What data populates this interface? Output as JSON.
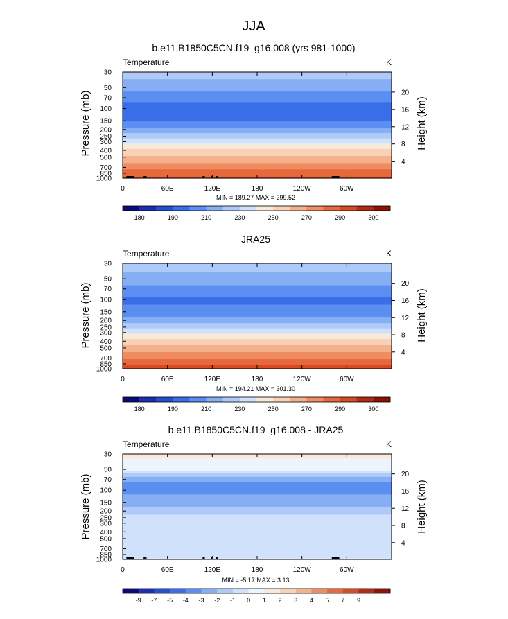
{
  "page_title": "JJA",
  "colors": {
    "temp_scale": [
      "#0a0a78",
      "#1c2eb4",
      "#2150d2",
      "#3a6ee8",
      "#5b8ef0",
      "#86aef4",
      "#aecaf8",
      "#d0e2fb",
      "#f6ead8",
      "#f8d2b8",
      "#f5b08c",
      "#f08c62",
      "#e8683e",
      "#d84a24",
      "#b02c14",
      "#8a1208"
    ],
    "diff_scale": [
      "#0a0a78",
      "#1c2eb4",
      "#2150d2",
      "#3a6ee8",
      "#5b8ef0",
      "#86aef4",
      "#aecaf8",
      "#d0e2fb",
      "#eef4fc",
      "#fbe8dc",
      "#f8d2b8",
      "#f5b08c",
      "#f08c62",
      "#e8683e",
      "#d84a24",
      "#b02c14",
      "#8a1208"
    ],
    "topography": "#000000"
  },
  "chart_data": [
    {
      "type": "heatmap",
      "title": "b.e11.B1850C5CN.f19_g16.008 (yrs 981-1000)",
      "left_label": "Temperature",
      "right_label": "K",
      "ylabel": "Pressure (mb)",
      "ylabel_right": "Height (km)",
      "y_scale": "log",
      "y_reversed": true,
      "ylim": [
        1000,
        30
      ],
      "xlim": [
        0,
        360
      ],
      "x_ticks": [
        "0",
        "60E",
        "120E",
        "180",
        "120W",
        "60W"
      ],
      "y_ticks": [
        "30",
        "50",
        "70",
        "100",
        "150",
        "200",
        "250",
        "300",
        "400",
        "500",
        "700",
        "850",
        "1000"
      ],
      "height_ticks": [
        "20",
        "16",
        "12",
        "8",
        "4"
      ],
      "stats": "MIN = 189.27  MAX = 299.52",
      "profile": {
        "pressure": [
          30,
          50,
          70,
          100,
          150,
          200,
          250,
          300,
          400,
          500,
          700,
          850,
          1000
        ],
        "temperature": [
          225,
          214,
          204,
          194,
          200,
          213,
          226,
          236,
          252,
          262,
          276,
          286,
          291
        ]
      },
      "colorbar": {
        "levels": [
          175,
          180,
          185,
          190,
          200,
          210,
          220,
          230,
          240,
          250,
          260,
          270,
          280,
          290,
          295,
          300
        ],
        "labels": [
          "180",
          "190",
          "210",
          "230",
          "250",
          "270",
          "290",
          "300"
        ]
      },
      "topography_segments": [
        [
          5,
          15
        ],
        [
          28,
          30
        ],
        [
          30,
          32
        ],
        [
          107,
          110
        ],
        [
          118,
          120
        ],
        [
          125,
          127
        ],
        [
          280,
          290
        ]
      ]
    },
    {
      "type": "heatmap",
      "title": "JRA25",
      "left_label": "Temperature",
      "right_label": "K",
      "ylabel": "Pressure (mb)",
      "ylabel_right": "Height (km)",
      "y_scale": "log",
      "y_reversed": true,
      "ylim": [
        1000,
        30
      ],
      "xlim": [
        0,
        360
      ],
      "x_ticks": [
        "0",
        "60E",
        "120E",
        "180",
        "120W",
        "60W"
      ],
      "y_ticks": [
        "30",
        "50",
        "70",
        "100",
        "150",
        "200",
        "250",
        "300",
        "400",
        "500",
        "700",
        "850",
        "1000"
      ],
      "height_ticks": [
        "20",
        "16",
        "12",
        "8",
        "4"
      ],
      "stats": "MIN = 194.21  MAX = 301.30",
      "profile": {
        "pressure": [
          30,
          50,
          70,
          100,
          150,
          200,
          250,
          300,
          400,
          500,
          700,
          850,
          1000
        ],
        "temperature": [
          225,
          216,
          207,
          198,
          203,
          215,
          227,
          238,
          254,
          264,
          278,
          288,
          294
        ]
      },
      "colorbar": {
        "levels": [
          175,
          180,
          185,
          190,
          200,
          210,
          220,
          230,
          240,
          250,
          260,
          270,
          280,
          290,
          295,
          300
        ],
        "labels": [
          "180",
          "190",
          "210",
          "230",
          "250",
          "270",
          "290",
          "300"
        ]
      },
      "topography_segments": []
    },
    {
      "type": "heatmap",
      "title": "b.e11.B1850C5CN.f19_g16.008 - JRA25",
      "left_label": "Temperature",
      "right_label": "K",
      "ylabel": "Pressure (mb)",
      "ylabel_right": "Height (km)",
      "y_scale": "log",
      "y_reversed": true,
      "ylim": [
        1000,
        30
      ],
      "xlim": [
        0,
        360
      ],
      "x_ticks": [
        "0",
        "60E",
        "120E",
        "180",
        "120W",
        "60W"
      ],
      "y_ticks": [
        "30",
        "50",
        "70",
        "100",
        "150",
        "200",
        "250",
        "300",
        "400",
        "500",
        "700",
        "850",
        "1000"
      ],
      "height_ticks": [
        "20",
        "16",
        "12",
        "8",
        "4"
      ],
      "stats": "MIN =  -5.17  MAX =   3.13",
      "profile": {
        "pressure": [
          30,
          40,
          50,
          60,
          70,
          85,
          100,
          130,
          150,
          200,
          250,
          300,
          400,
          500,
          700,
          850,
          950,
          1000
        ],
        "temperature": [
          1.5,
          0.5,
          0.5,
          -1.5,
          -2.5,
          -3.5,
          -3.5,
          -2.5,
          -2.5,
          -1.5,
          -0.5,
          -0.5,
          -0.5,
          -0.5,
          -0.5,
          -0.5,
          -0.5,
          0.5
        ]
      },
      "colorbar": {
        "levels": [
          -10,
          -9,
          -7,
          -5,
          -4,
          -3,
          -2,
          -1,
          0,
          1,
          2,
          3,
          4,
          5,
          7,
          9,
          10
        ],
        "labels": [
          "-9",
          "-7",
          "-5",
          "-4",
          "-3",
          "-2",
          "-1",
          "0",
          "1",
          "2",
          "3",
          "4",
          "5",
          "7",
          "9"
        ]
      },
      "topography_segments": [
        [
          5,
          15
        ],
        [
          28,
          30
        ],
        [
          30,
          32
        ],
        [
          107,
          110
        ],
        [
          118,
          120
        ],
        [
          125,
          127
        ],
        [
          280,
          290
        ]
      ]
    }
  ]
}
